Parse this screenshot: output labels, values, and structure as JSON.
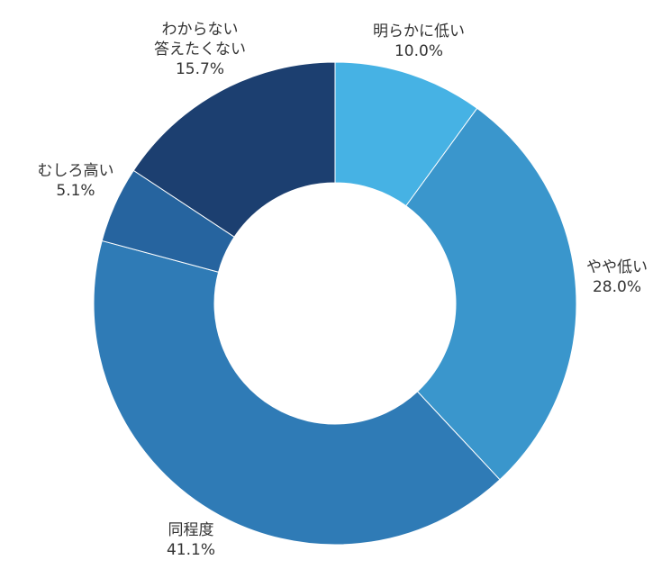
{
  "chart_data": {
    "type": "pie",
    "donut": true,
    "title": "",
    "categories": [
      "明らかに低い",
      "やや低い",
      "同程度",
      "むしろ高い",
      "わからない 答えたくない"
    ],
    "values": [
      10.0,
      28.0,
      41.1,
      5.1,
      15.7
    ],
    "value_labels": [
      "10.0%",
      "28.0%",
      "41.1%",
      "5.1%",
      "15.7%"
    ],
    "label_lines": [
      [
        "明らかに低い"
      ],
      [
        "やや低い"
      ],
      [
        "同程度"
      ],
      [
        "むしろ高い"
      ],
      [
        "わからない",
        "答えたくない"
      ]
    ],
    "colors": [
      "#46b2e4",
      "#3a96cc",
      "#2f7bb6",
      "#26649f",
      "#1c3f70"
    ],
    "start_angle": "12 o'clock",
    "direction": "clockwise",
    "legend": "none"
  }
}
